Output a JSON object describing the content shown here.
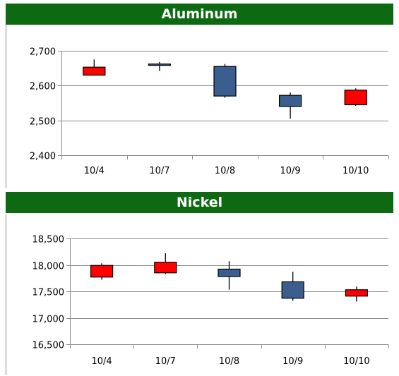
{
  "chart_data": [
    {
      "type": "candlestick",
      "title": "Aluminum",
      "categories": [
        "10/4",
        "10/7",
        "10/8",
        "10/9",
        "10/10"
      ],
      "y_tick_labels": [
        "2,700",
        "2,600",
        "2,500",
        "2,400"
      ],
      "ylim": [
        2400,
        2700
      ],
      "y_ticks": [
        2400,
        2500,
        2600,
        2700
      ],
      "grid": true,
      "series": [
        {
          "open": 2630,
          "close": 2653,
          "high": 2675,
          "low": 2630,
          "color": "#ff0000"
        },
        {
          "open": 2662,
          "close": 2658,
          "high": 2668,
          "low": 2642,
          "color": "#3a5f8f"
        },
        {
          "open": 2655,
          "close": 2570,
          "high": 2662,
          "low": 2565,
          "color": "#3a5f8f"
        },
        {
          "open": 2572,
          "close": 2540,
          "high": 2580,
          "low": 2505,
          "color": "#3a5f8f"
        },
        {
          "open": 2545,
          "close": 2587,
          "high": 2592,
          "low": 2542,
          "color": "#ff0000"
        }
      ]
    },
    {
      "type": "candlestick",
      "title": "Nickel",
      "categories": [
        "10/4",
        "10/7",
        "10/8",
        "10/9",
        "10/10"
      ],
      "y_tick_labels": [
        "18,500",
        "18,000",
        "17,500",
        "17,000",
        "16,500"
      ],
      "ylim": [
        16500,
        18500
      ],
      "y_ticks": [
        16500,
        17000,
        17500,
        18000,
        18500
      ],
      "grid": true,
      "series": [
        {
          "open": 17770,
          "close": 17990,
          "high": 18030,
          "low": 17720,
          "color": "#ff0000"
        },
        {
          "open": 17850,
          "close": 18050,
          "high": 18220,
          "low": 17830,
          "color": "#ff0000"
        },
        {
          "open": 17920,
          "close": 17780,
          "high": 18070,
          "low": 17530,
          "color": "#3a5f8f"
        },
        {
          "open": 17680,
          "close": 17370,
          "high": 17870,
          "low": 17320,
          "color": "#3a5f8f"
        },
        {
          "open": 17410,
          "close": 17530,
          "high": 17590,
          "low": 17310,
          "color": "#ff0000"
        }
      ]
    }
  ]
}
